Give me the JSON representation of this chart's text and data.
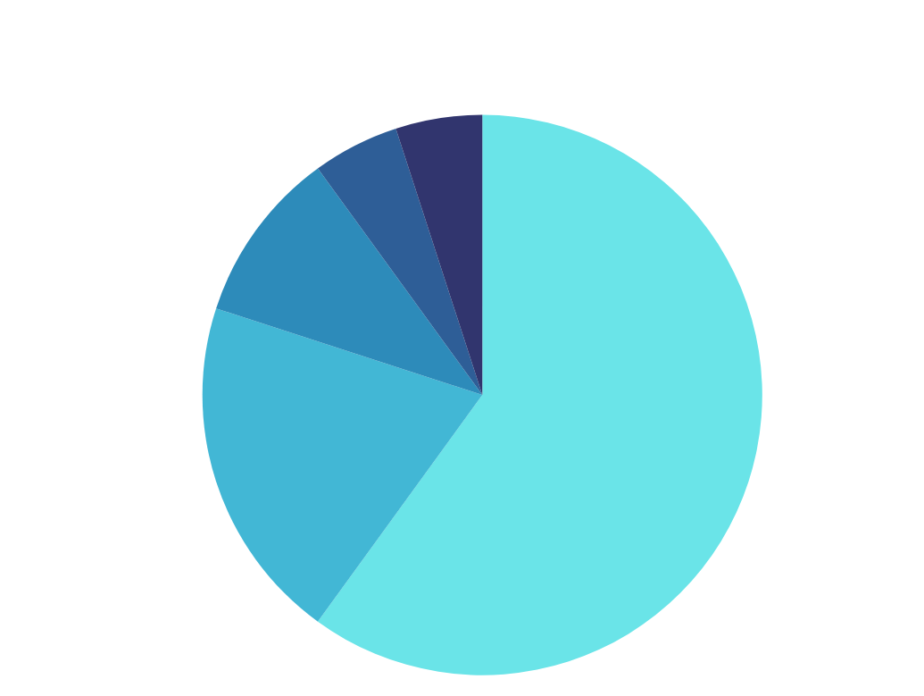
{
  "chart_data": {
    "type": "pie",
    "categories": [
      null,
      null,
      null,
      null,
      null
    ],
    "values": [
      60,
      20,
      10,
      5,
      5
    ],
    "colors": [
      "#6ae4e8",
      "#42b7d5",
      "#2d8bba",
      "#2e5e97",
      "#31356e"
    ]
  }
}
